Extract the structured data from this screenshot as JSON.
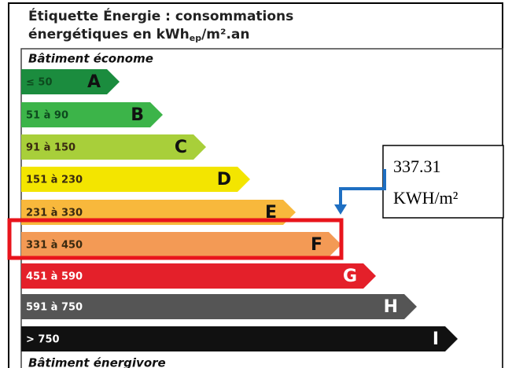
{
  "header": {
    "title_line1": "Étiquette Énergie : consommations",
    "title_line2": "énergétiques en kWh",
    "title_sub": "ep",
    "title_line2_end": "/m².an"
  },
  "top_label": "Bâtiment économe",
  "bottom_label": "Bâtiment énergivore",
  "classes": [
    {
      "range": "≤ 50",
      "letter": "A",
      "color": "#1b8c3e"
    },
    {
      "range": "51 à 90",
      "letter": "B",
      "color": "#3cb449"
    },
    {
      "range": "91 à 150",
      "letter": "C",
      "color": "#a8cf3a"
    },
    {
      "range": "151 à 230",
      "letter": "D",
      "color": "#f3e500"
    },
    {
      "range": "231 à 330",
      "letter": "E",
      "color": "#f8b83c"
    },
    {
      "range": "331 à 450",
      "letter": "F",
      "color": "#f39a55"
    },
    {
      "range": "451 à 590",
      "letter": "G",
      "color": "#e4202a"
    },
    {
      "range": "591 à 750",
      "letter": "H",
      "color": "#555555"
    },
    {
      "range": "> 750",
      "letter": "I",
      "color": "#111111"
    }
  ],
  "annotation": {
    "value": "337.31",
    "unit": "KWH/m²"
  }
}
